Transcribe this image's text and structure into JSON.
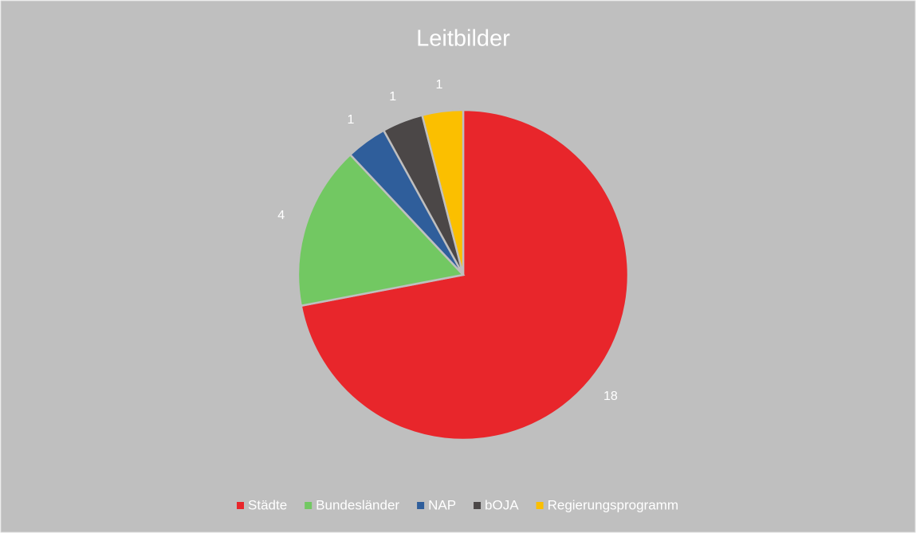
{
  "chart_data": {
    "type": "pie",
    "title": "Leitbilder",
    "categories": [
      "Städte",
      "Bundesländer",
      "NAP",
      "bOJA",
      "Regierungsprogramm"
    ],
    "values": [
      18,
      4,
      1,
      1,
      1
    ],
    "colors": [
      "#e8262b",
      "#72c862",
      "#2f5e9b",
      "#4b4747",
      "#fbbf00"
    ],
    "legend": "bottom"
  }
}
